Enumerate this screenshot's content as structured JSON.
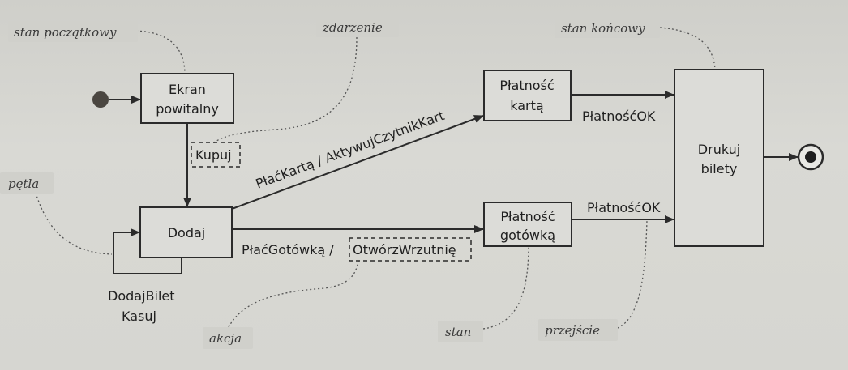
{
  "states": {
    "ekran": {
      "line1": "Ekran",
      "line2": "powitalny"
    },
    "dodaj": {
      "label": "Dodaj"
    },
    "karta": {
      "line1": "Płatność",
      "line2": "kartą"
    },
    "gotowka": {
      "line1": "Płatność",
      "line2": "gotówką"
    },
    "drukuj": {
      "line1": "Drukuj",
      "line2": "bilety"
    }
  },
  "transitions": {
    "kupuj": "Kupuj",
    "placKarta": "PłaćKartą / AktywujCzytnikKart",
    "placGotowka": "PłaćGotówką /",
    "otworzWrzutnie": "OtwórzWrzutnię",
    "platnoscOk1": "PłatnośćOK",
    "platnoscOk2": "PłatnośćOK",
    "dodajBilet": "DodajBilet",
    "kasuj": "Kasuj"
  },
  "callouts": {
    "stanPoczatkowy": "stan początkowy",
    "zdarzenie": "zdarzenie",
    "stanKoncowy": "stan końcowy",
    "petla": "pętla",
    "akcja": "akcja",
    "stan": "stan",
    "przejscie": "przejście"
  },
  "colors": {
    "ink": "#2b2b2b",
    "paper": "#d3d3ce"
  }
}
